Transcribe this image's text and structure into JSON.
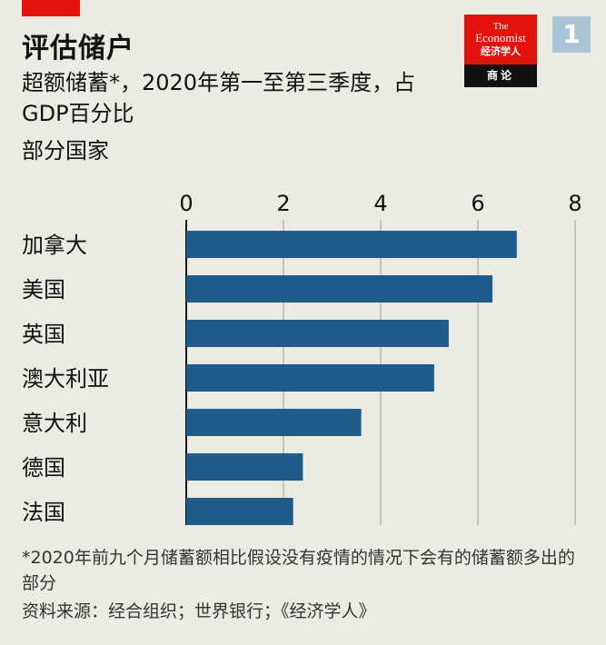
{
  "page_number": "1",
  "title": "评估储户",
  "subtitle": "超额储蓄*，2020年第一至第三季度，占GDP百分比",
  "unit_label": "部分国家",
  "logo": {
    "line1": "The",
    "line2": "Economist",
    "line3": "经济学人",
    "line4": "商论"
  },
  "footnote": "*2020年前九个月储蓄额相比假设没有疫情的情况下会有的储蓄额多出的部分",
  "source": "资料来源：经合组织；世界银行；《经济学人》",
  "colors": {
    "bar": "#1f5c8b",
    "accent_red": "#e3120b",
    "background": "#ecebe3"
  },
  "chart_data": {
    "type": "bar",
    "orientation": "horizontal",
    "categories": [
      "加拿大",
      "美国",
      "英国",
      "澳大利亚",
      "意大利",
      "德国",
      "法国"
    ],
    "values": [
      6.8,
      6.3,
      5.4,
      5.1,
      3.6,
      2.4,
      2.2
    ],
    "xticks": [
      0,
      2,
      4,
      6,
      8
    ],
    "xlim": [
      0,
      8
    ],
    "grid": true,
    "tick_position": "top"
  }
}
